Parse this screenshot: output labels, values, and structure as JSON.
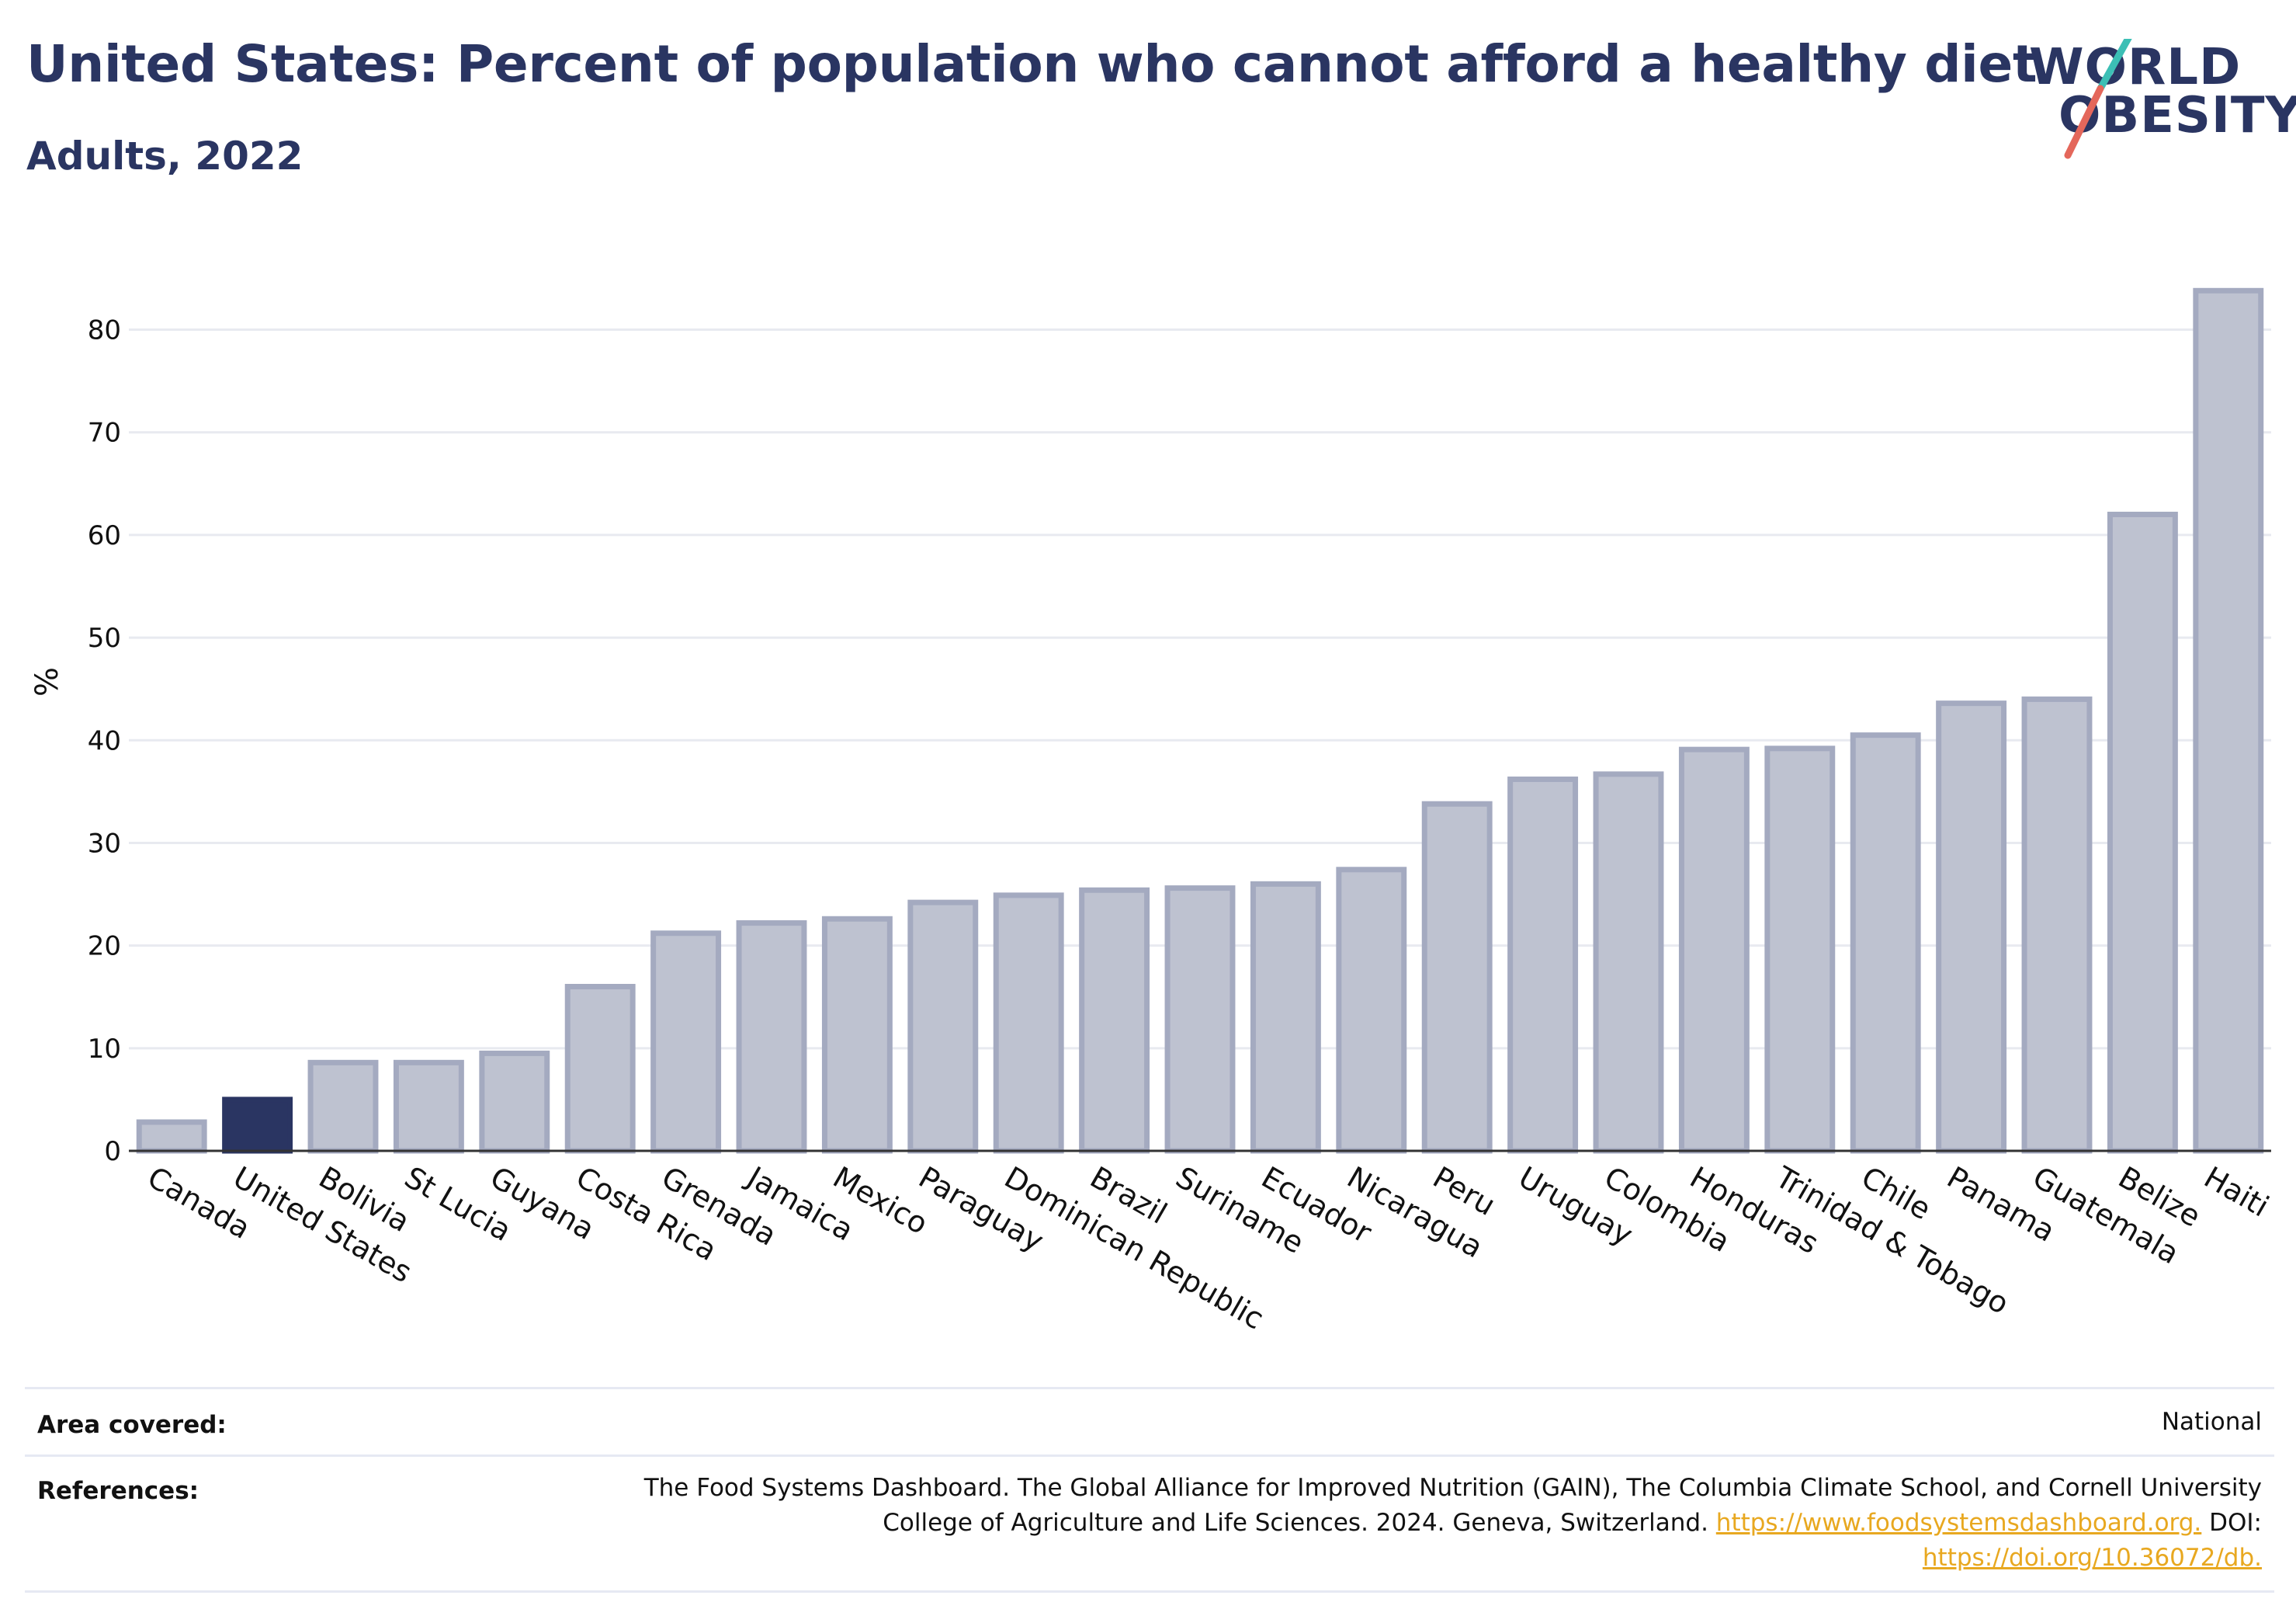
{
  "header": {
    "title": "United States: Percent of population who cannot afford a healthy diet",
    "subtitle": "Adults, 2022"
  },
  "logo": {
    "line1": "WORLD",
    "line2": "OBESITY",
    "colors": [
      "#2a3562",
      "#e4675b",
      "#3cbfb5"
    ]
  },
  "chart_data": {
    "type": "bar",
    "title": "United States: Percent of population who cannot afford a healthy diet",
    "subtitle": "Adults, 2022",
    "ylabel": "%",
    "xlabel": "",
    "ylim": [
      0,
      87
    ],
    "yticks": [
      0,
      10,
      20,
      30,
      40,
      50,
      60,
      70,
      80
    ],
    "grid": true,
    "highlight": "United States",
    "highlight_color": "#2a3562",
    "bar_color": "#bec2d0",
    "bar_edge_color": "#a4aac0",
    "categories": [
      "Canada",
      "United States",
      "Bolivia",
      "St Lucia",
      "Guyana",
      "Costa Rica",
      "Grenada",
      "Jamaica",
      "Mexico",
      "Paraguay",
      "Dominican Republic",
      "Brazil",
      "Suriname",
      "Ecuador",
      "Nicaragua",
      "Peru",
      "Uruguay",
      "Colombia",
      "Honduras",
      "Trinidad & Tobago",
      "Chile",
      "Panama",
      "Guatemala",
      "Belize",
      "Haiti"
    ],
    "values": [
      2.8,
      5.0,
      8.6,
      8.6,
      9.5,
      16.0,
      21.2,
      22.2,
      22.6,
      24.2,
      24.9,
      25.4,
      25.6,
      26.0,
      27.4,
      33.8,
      36.2,
      36.7,
      39.1,
      39.2,
      40.5,
      43.6,
      44.0,
      62.0,
      83.8
    ]
  },
  "footer": {
    "area_label": "Area covered:",
    "area_value": "National",
    "references_label": "References:",
    "references_line1": "The Food Systems Dashboard. The Global Alliance for Improved Nutrition (GAIN), The Columbia Climate School, and Cornell University",
    "references_line2": "College of Agriculture and Life Sciences. 2024. Geneva, Switzerland.",
    "references_link1": "https://www.foodsystemsdashboard.org.",
    "references_doi": "DOI:",
    "references_link2": "https://doi.org/10.36072/db."
  }
}
